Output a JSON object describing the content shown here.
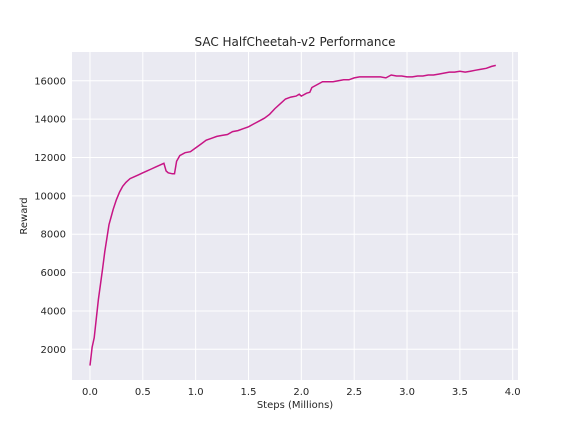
{
  "chart_data": {
    "type": "line",
    "title": "SAC HalfCheetah-v2 Performance",
    "xlabel": "Steps (Millions)",
    "ylabel": "Reward",
    "xlim": [
      -0.17,
      4.05
    ],
    "ylim": [
      400,
      17500
    ],
    "xticks": [
      0.0,
      0.5,
      1.0,
      1.5,
      2.0,
      2.5,
      3.0,
      3.5,
      4.0
    ],
    "xtick_labels": [
      "0.0",
      "0.5",
      "1.0",
      "1.5",
      "2.0",
      "2.5",
      "3.0",
      "3.5",
      "4.0"
    ],
    "yticks": [
      2000,
      4000,
      6000,
      8000,
      10000,
      12000,
      14000,
      16000
    ],
    "ytick_labels": [
      "2000",
      "4000",
      "6000",
      "8000",
      "10000",
      "12000",
      "14000",
      "16000"
    ],
    "grid": true,
    "background": "#eaeaf2",
    "grid_color": "#ffffff",
    "series": [
      {
        "color": "#c71585",
        "x": [
          0.0,
          0.02,
          0.04,
          0.06,
          0.08,
          0.1,
          0.12,
          0.14,
          0.16,
          0.18,
          0.2,
          0.22,
          0.25,
          0.28,
          0.31,
          0.34,
          0.38,
          0.42,
          0.46,
          0.5,
          0.54,
          0.58,
          0.62,
          0.66,
          0.7,
          0.72,
          0.74,
          0.78,
          0.8,
          0.82,
          0.85,
          0.9,
          0.95,
          1.0,
          1.05,
          1.1,
          1.15,
          1.2,
          1.25,
          1.3,
          1.35,
          1.4,
          1.45,
          1.5,
          1.55,
          1.6,
          1.65,
          1.7,
          1.75,
          1.8,
          1.85,
          1.9,
          1.95,
          1.98,
          2.0,
          2.05,
          2.08,
          2.1,
          2.15,
          2.2,
          2.25,
          2.3,
          2.35,
          2.4,
          2.45,
          2.5,
          2.55,
          2.6,
          2.65,
          2.7,
          2.75,
          2.8,
          2.85,
          2.9,
          2.95,
          3.0,
          3.05,
          3.1,
          3.15,
          3.2,
          3.25,
          3.3,
          3.35,
          3.4,
          3.45,
          3.5,
          3.55,
          3.6,
          3.65,
          3.7,
          3.75,
          3.8,
          3.84
        ],
        "y": [
          1150,
          2100,
          2600,
          3600,
          4600,
          5400,
          6200,
          7100,
          7800,
          8500,
          8900,
          9300,
          9800,
          10200,
          10500,
          10700,
          10900,
          11000,
          11100,
          11200,
          11300,
          11400,
          11500,
          11600,
          11700,
          11300,
          11200,
          11150,
          11150,
          11800,
          12100,
          12250,
          12300,
          12500,
          12700,
          12900,
          13000,
          13100,
          13150,
          13200,
          13350,
          13400,
          13500,
          13600,
          13750,
          13900,
          14050,
          14250,
          14550,
          14800,
          15050,
          15150,
          15200,
          15300,
          15200,
          15350,
          15400,
          15650,
          15800,
          15950,
          15950,
          15950,
          16000,
          16050,
          16050,
          16150,
          16200,
          16200,
          16200,
          16200,
          16200,
          16150,
          16300,
          16250,
          16250,
          16200,
          16200,
          16250,
          16250,
          16300,
          16300,
          16350,
          16400,
          16450,
          16450,
          16500,
          16450,
          16500,
          16550,
          16600,
          16650,
          16750,
          16800
        ]
      }
    ]
  }
}
